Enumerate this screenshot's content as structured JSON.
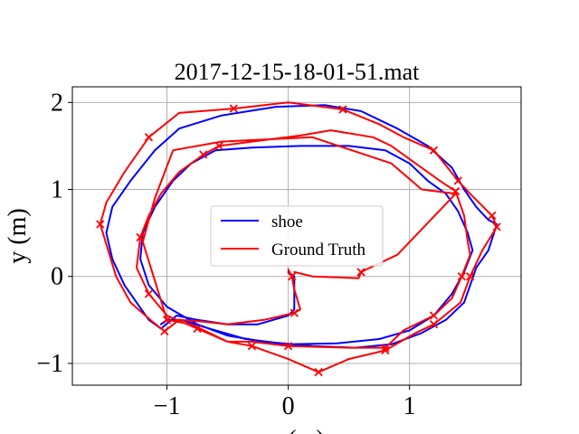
{
  "chart_data": {
    "type": "line",
    "title": "2017-12-15-18-01-51.mat",
    "xlabel": "x (m)",
    "ylabel": "y (m)",
    "xlim": [
      -1.78,
      1.92
    ],
    "ylim": [
      -1.25,
      2.18
    ],
    "xticks": [
      -1,
      0,
      1
    ],
    "xtick_labels": [
      "−1",
      "0",
      "1"
    ],
    "yticks": [
      -1,
      0,
      1,
      2
    ],
    "ytick_labels": [
      "−1",
      "0",
      "1",
      "2"
    ],
    "grid": true,
    "legend": {
      "position": "center"
    },
    "series": [
      {
        "name": "shoe",
        "color": "#0000ff",
        "marker": "none",
        "points": [
          [
            0.0,
            0.05
          ],
          [
            0.05,
            0.0
          ],
          [
            0.05,
            -0.2
          ],
          [
            0.05,
            -0.38
          ],
          [
            0.0,
            -0.45
          ],
          [
            -0.25,
            -0.55
          ],
          [
            -0.5,
            -0.55
          ],
          [
            -0.75,
            -0.5
          ],
          [
            -0.92,
            -0.45
          ],
          [
            -1.05,
            -0.6
          ],
          [
            -1.15,
            -0.5
          ],
          [
            -1.25,
            -0.3
          ],
          [
            -1.35,
            -0.1
          ],
          [
            -1.45,
            0.2
          ],
          [
            -1.5,
            0.5
          ],
          [
            -1.45,
            0.8
          ],
          [
            -1.3,
            1.1
          ],
          [
            -1.1,
            1.45
          ],
          [
            -0.9,
            1.7
          ],
          [
            -0.55,
            1.85
          ],
          [
            -0.1,
            1.95
          ],
          [
            0.3,
            1.97
          ],
          [
            0.6,
            1.9
          ],
          [
            0.9,
            1.7
          ],
          [
            1.15,
            1.5
          ],
          [
            1.35,
            1.25
          ],
          [
            1.45,
            1.0
          ],
          [
            1.55,
            0.8
          ],
          [
            1.65,
            0.65
          ],
          [
            1.72,
            0.6
          ],
          [
            1.65,
            0.3
          ],
          [
            1.55,
            0.1
          ],
          [
            1.5,
            -0.1
          ],
          [
            1.45,
            -0.3
          ],
          [
            1.3,
            -0.5
          ],
          [
            1.1,
            -0.65
          ],
          [
            0.85,
            -0.78
          ],
          [
            0.55,
            -0.82
          ],
          [
            0.2,
            -0.8
          ],
          [
            -0.2,
            -0.75
          ],
          [
            -0.5,
            -0.68
          ],
          [
            -0.75,
            -0.55
          ],
          [
            -1.0,
            -0.35
          ],
          [
            -1.15,
            -0.1
          ],
          [
            -1.22,
            0.2
          ],
          [
            -1.2,
            0.5
          ],
          [
            -1.1,
            0.8
          ],
          [
            -0.95,
            1.1
          ],
          [
            -0.8,
            1.3
          ],
          [
            -0.6,
            1.45
          ],
          [
            -0.3,
            1.48
          ],
          [
            0.1,
            1.5
          ],
          [
            0.5,
            1.5
          ],
          [
            0.8,
            1.45
          ],
          [
            1.0,
            1.3
          ],
          [
            1.15,
            1.1
          ],
          [
            1.3,
            0.95
          ],
          [
            1.4,
            0.75
          ],
          [
            1.48,
            0.5
          ],
          [
            1.52,
            0.3
          ],
          [
            1.45,
            0.05
          ],
          [
            1.35,
            -0.2
          ],
          [
            1.2,
            -0.45
          ],
          [
            1.0,
            -0.62
          ],
          [
            0.75,
            -0.72
          ],
          [
            0.4,
            -0.77
          ],
          [
            0.0,
            -0.78
          ],
          [
            -0.35,
            -0.72
          ],
          [
            -0.65,
            -0.6
          ],
          [
            -0.88,
            -0.5
          ],
          [
            -1.0,
            -0.5
          ],
          [
            -1.05,
            -0.55
          ]
        ]
      },
      {
        "name": "Ground Truth",
        "color": "#ff0000",
        "marker": "x",
        "points": [
          [
            0.0,
            0.08
          ],
          [
            0.03,
            0.0
          ],
          [
            0.05,
            -0.15
          ],
          [
            0.1,
            -0.38
          ],
          [
            0.05,
            -0.42
          ],
          [
            -0.2,
            -0.5
          ],
          [
            -0.5,
            -0.55
          ],
          [
            -0.7,
            -0.52
          ],
          [
            -0.9,
            -0.5
          ],
          [
            -1.02,
            -0.63
          ],
          [
            -1.12,
            -0.52
          ],
          [
            -1.3,
            -0.3
          ],
          [
            -1.42,
            0.0
          ],
          [
            -1.55,
            0.6
          ],
          [
            -1.5,
            0.85
          ],
          [
            -1.35,
            1.2
          ],
          [
            -1.15,
            1.6
          ],
          [
            -0.9,
            1.88
          ],
          [
            -0.45,
            1.93
          ],
          [
            0.0,
            2.0
          ],
          [
            0.45,
            1.92
          ],
          [
            0.75,
            1.75
          ],
          [
            0.95,
            1.6
          ],
          [
            1.2,
            1.45
          ],
          [
            1.4,
            1.1
          ],
          [
            1.5,
            0.95
          ],
          [
            1.68,
            0.7
          ],
          [
            1.72,
            0.57
          ],
          [
            1.6,
            0.3
          ],
          [
            1.5,
            0.0
          ],
          [
            1.42,
            -0.3
          ],
          [
            1.2,
            -0.55
          ],
          [
            1.05,
            -0.65
          ],
          [
            0.8,
            -0.85
          ],
          [
            0.5,
            -0.95
          ],
          [
            0.25,
            -1.1
          ],
          [
            0.0,
            -0.95
          ],
          [
            -0.3,
            -0.8
          ],
          [
            -0.5,
            -0.75
          ],
          [
            -0.75,
            -0.6
          ],
          [
            -1.0,
            -0.45
          ],
          [
            -1.15,
            -0.2
          ],
          [
            -1.25,
            0.1
          ],
          [
            -1.22,
            0.45
          ],
          [
            -1.15,
            0.7
          ],
          [
            -1.05,
            0.95
          ],
          [
            -0.9,
            1.2
          ],
          [
            -0.7,
            1.4
          ],
          [
            -0.57,
            1.5
          ],
          [
            -0.3,
            1.55
          ],
          [
            0.1,
            1.62
          ],
          [
            0.35,
            1.68
          ],
          [
            0.7,
            1.6
          ],
          [
            0.85,
            1.5
          ],
          [
            1.0,
            1.35
          ],
          [
            1.25,
            1.1
          ],
          [
            1.38,
            0.98
          ],
          [
            1.45,
            0.7
          ],
          [
            1.48,
            0.4
          ],
          [
            1.5,
            0.25
          ],
          [
            1.43,
            0.0
          ],
          [
            1.35,
            -0.25
          ],
          [
            1.2,
            -0.45
          ],
          [
            0.95,
            -0.62
          ],
          [
            0.8,
            -0.82
          ],
          [
            0.5,
            -0.82
          ],
          [
            0.0,
            -0.8
          ],
          [
            -0.3,
            -0.75
          ],
          [
            -0.5,
            -0.75
          ],
          [
            -0.8,
            -0.55
          ],
          [
            -1.0,
            -0.5
          ],
          [
            -1.2,
            0.4
          ],
          [
            -1.1,
            0.9
          ],
          [
            -0.95,
            1.45
          ],
          [
            -0.55,
            1.55
          ],
          [
            0.2,
            1.6
          ],
          [
            0.85,
            1.3
          ],
          [
            1.1,
            1.0
          ],
          [
            1.38,
            0.95
          ],
          [
            0.9,
            0.25
          ],
          [
            0.6,
            0.05
          ],
          [
            0.58,
            -0.02
          ],
          [
            0.2,
            0.0
          ],
          [
            0.05,
            0.05
          ]
        ]
      }
    ]
  }
}
